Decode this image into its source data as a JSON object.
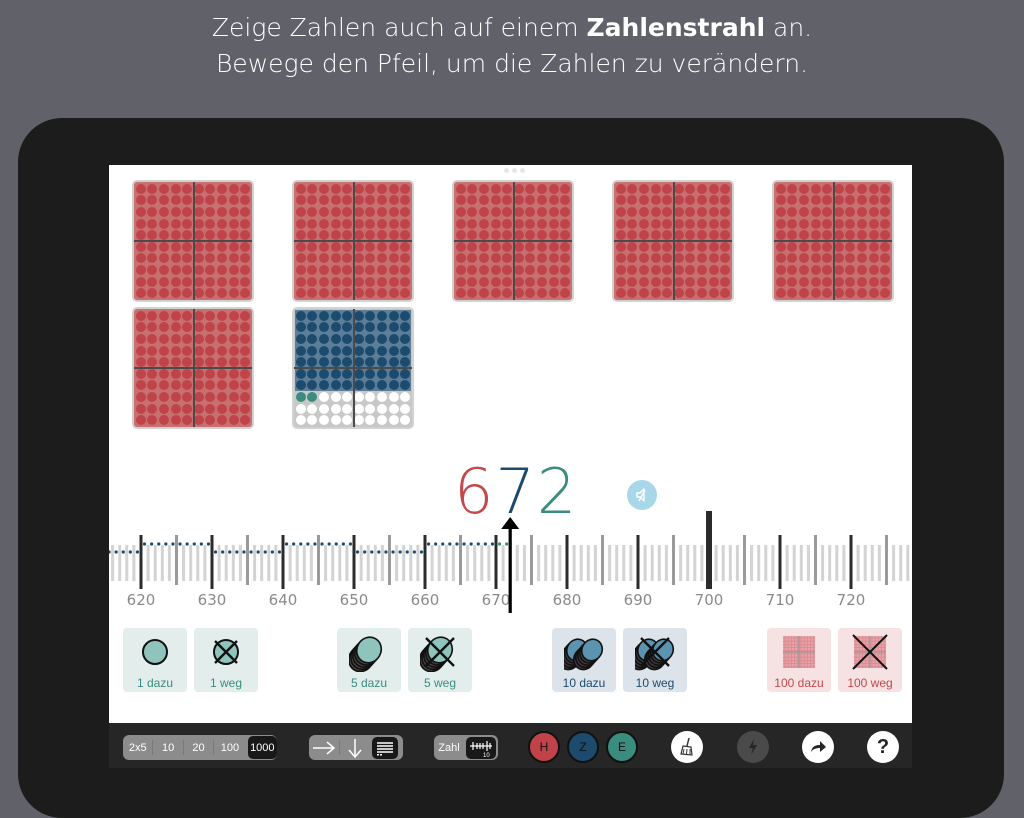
{
  "header": {
    "line1_pre": "Zeige Zahlen auch auf einem ",
    "line1_bold": "Zahlenstrahl",
    "line1_post": " an.",
    "line2": "Bewege den Pfeil, um die Zahlen zu verändern."
  },
  "display": {
    "value": 672,
    "hundreds_digit": "6",
    "tens_digit": "7",
    "ones_digit": "2",
    "speaker_icon": "speaker-muted-icon"
  },
  "blocks": {
    "hundreds_count": 6,
    "tens_count": 7,
    "ones_count": 2
  },
  "number_line": {
    "labels": [
      "620",
      "630",
      "640",
      "650",
      "660",
      "670",
      "680",
      "690",
      "700",
      "710",
      "720"
    ],
    "pointer_value": 672,
    "start": 616,
    "end": 728
  },
  "actions": [
    {
      "label": "1 dazu",
      "icon": "one-counter-icon",
      "color": "green"
    },
    {
      "label": "1 weg",
      "icon": "one-counter-remove-icon",
      "color": "green"
    },
    {
      "label": "5 dazu",
      "icon": "five-counters-icon",
      "color": "green"
    },
    {
      "label": "5 weg",
      "icon": "five-counters-remove-icon",
      "color": "green"
    },
    {
      "label": "10 dazu",
      "icon": "ten-counters-icon",
      "color": "blue"
    },
    {
      "label": "10 weg",
      "icon": "ten-counters-remove-icon",
      "color": "blue"
    },
    {
      "label": "100 dazu",
      "icon": "hundred-block-icon",
      "color": "red"
    },
    {
      "label": "100 weg",
      "icon": "hundred-block-remove-icon",
      "color": "red"
    }
  ],
  "toolbar": {
    "range_options": [
      "2x5",
      "10",
      "20",
      "100",
      "1000"
    ],
    "range_selected": "1000",
    "layout_options": [
      "arrow-right-icon",
      "arrow-down-icon",
      "lines-icon"
    ],
    "layout_selected": "lines-icon",
    "view_label": "Zahl",
    "view_numberline_label": "10",
    "place_buttons": [
      "H",
      "Z",
      "E"
    ],
    "tools": [
      "broom-icon",
      "lightning-icon",
      "share-arrow-icon",
      "help-icon"
    ],
    "help_label": "?"
  },
  "colors": {
    "hundreds": "#c24a4c",
    "tens": "#1c4b6e",
    "ones": "#3a8c7e",
    "background": "#616269",
    "frame": "#1c1c1c"
  }
}
